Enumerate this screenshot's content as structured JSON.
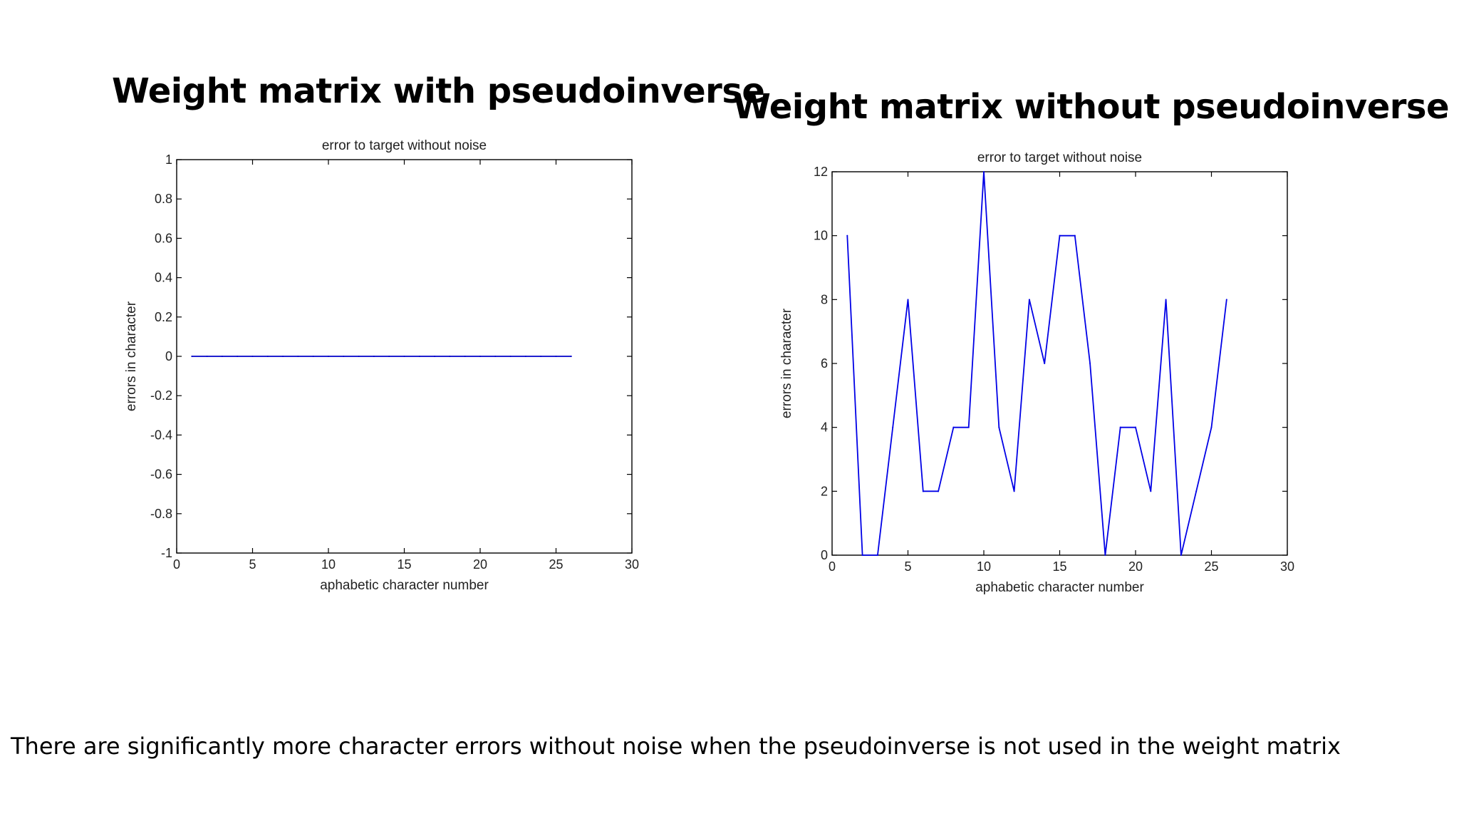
{
  "slide": {
    "title_left": "Weight matrix with pseudoinverse",
    "title_right": "Weight matrix without pseudoinverse",
    "caption": "There are significantly more character errors without noise when the pseudoinverse is not used in the weight matrix"
  },
  "chart_data": [
    {
      "type": "line",
      "title": "error to target without noise",
      "xlabel": "aphabetic character number",
      "ylabel": "errors in character",
      "xlim": [
        0,
        30
      ],
      "ylim": [
        -1,
        1
      ],
      "xticks": [
        "0",
        "5",
        "10",
        "15",
        "20",
        "25",
        "30"
      ],
      "yticks": [
        "-1",
        "-0.8",
        "-0.6",
        "-0.4",
        "-0.2",
        "0",
        "0.2",
        "0.4",
        "0.6",
        "0.8",
        "1"
      ],
      "series": [
        {
          "x": [
            1,
            2,
            3,
            4,
            5,
            6,
            7,
            8,
            9,
            10,
            11,
            12,
            13,
            14,
            15,
            16,
            17,
            18,
            19,
            20,
            21,
            22,
            23,
            24,
            25,
            26
          ],
          "y": [
            0,
            0,
            0,
            0,
            0,
            0,
            0,
            0,
            0,
            0,
            0,
            0,
            0,
            0,
            0,
            0,
            0,
            0,
            0,
            0,
            0,
            0,
            0,
            0,
            0,
            0
          ],
          "color": "#0000c8"
        }
      ],
      "grid": false
    },
    {
      "type": "line",
      "title": "error to target without noise",
      "xlabel": "aphabetic character number",
      "ylabel": "errors in character",
      "xlim": [
        0,
        30
      ],
      "ylim": [
        0,
        12
      ],
      "xticks": [
        "0",
        "5",
        "10",
        "15",
        "20",
        "25",
        "30"
      ],
      "yticks": [
        "0",
        "2",
        "4",
        "6",
        "8",
        "10",
        "12"
      ],
      "series": [
        {
          "x": [
            1,
            2,
            3,
            4,
            5,
            6,
            7,
            8,
            9,
            10,
            11,
            12,
            13,
            14,
            15,
            16,
            17,
            18,
            19,
            20,
            21,
            22,
            23,
            24,
            25,
            26
          ],
          "y": [
            10,
            0,
            0,
            4,
            8,
            2,
            2,
            4,
            4,
            12,
            4,
            2,
            8,
            6,
            10,
            10,
            6,
            0,
            4,
            4,
            2,
            8,
            0,
            2,
            4,
            8
          ],
          "color": "#0000e6"
        }
      ],
      "grid": false
    }
  ]
}
